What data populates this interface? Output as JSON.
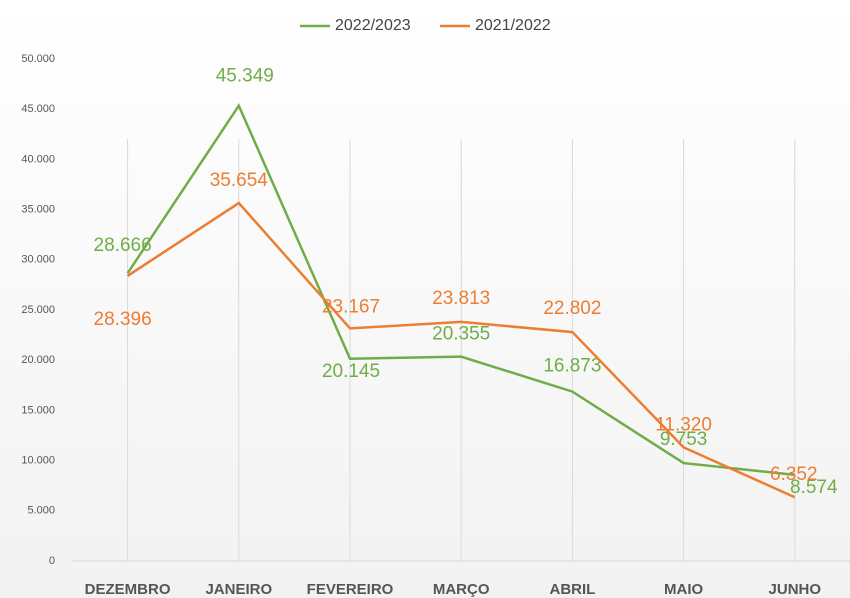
{
  "chart_data": {
    "type": "line",
    "categories": [
      "DEZEMBRO",
      "JANEIRO",
      "FEVEREIRO",
      "MARÇO",
      "ABRIL",
      "MAIO",
      "JUNHO"
    ],
    "series": [
      {
        "name": "2022/2023",
        "color": "#70ad47",
        "values": [
          28666,
          45349,
          20145,
          20355,
          16873,
          9753,
          8574
        ],
        "value_labels": [
          "28.666",
          "45.349",
          "20.145",
          "20.355",
          "16.873",
          "9.753",
          "8.574"
        ]
      },
      {
        "name": "2021/2022",
        "color": "#ed7d31",
        "values": [
          28396,
          35654,
          23167,
          23813,
          22802,
          11320,
          6352
        ],
        "value_labels": [
          "28.396",
          "35.654",
          "23.167",
          "23.813",
          "22.802",
          "11.320",
          "6.352"
        ]
      }
    ],
    "ylim": [
      0,
      50000
    ],
    "yticks": [
      {
        "value": 0,
        "label": "0"
      },
      {
        "value": 5000,
        "label": "5.000"
      },
      {
        "value": 10000,
        "label": "10.000"
      },
      {
        "value": 15000,
        "label": "15.000"
      },
      {
        "value": 20000,
        "label": "20.000"
      },
      {
        "value": 25000,
        "label": "25.000"
      },
      {
        "value": 30000,
        "label": "30.000"
      },
      {
        "value": 35000,
        "label": "35.000"
      },
      {
        "value": 40000,
        "label": "40.000"
      },
      {
        "value": 45000,
        "label": "45.000"
      },
      {
        "value": 50000,
        "label": "50.000"
      }
    ],
    "grid": true,
    "legend": "top"
  }
}
